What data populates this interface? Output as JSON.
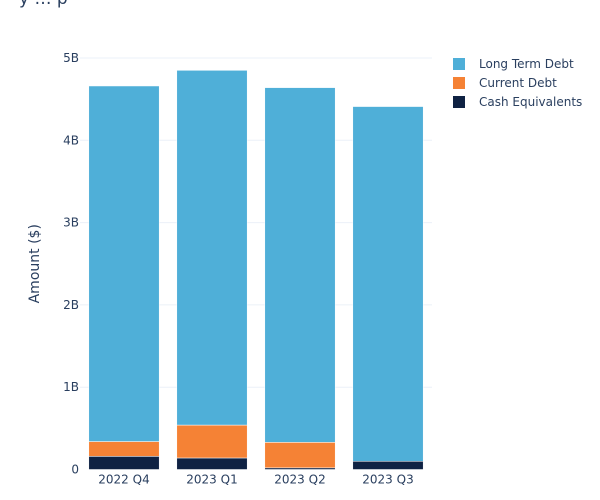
{
  "chart_data": {
    "type": "bar",
    "stacked": true,
    "categories": [
      "2022 Q4",
      "2023 Q1",
      "2023 Q2",
      "2023 Q3"
    ],
    "series": [
      {
        "name": "Cash Equivalents",
        "color": "#0f2243",
        "values": [
          0.16,
          0.14,
          0.02,
          0.1
        ]
      },
      {
        "name": "Current Debt",
        "color": "#f58235",
        "values": [
          0.18,
          0.4,
          0.31,
          0.0
        ]
      },
      {
        "name": "Long Term Debt",
        "color": "#4fafd8",
        "values": [
          4.32,
          4.31,
          4.31,
          4.31
        ]
      }
    ],
    "unit_suffix": "B",
    "ylabel": "Amount ($)",
    "xlabel": "",
    "ylim": [
      0,
      5
    ],
    "yticks": [
      0,
      1,
      2,
      3,
      4,
      5
    ],
    "ytick_labels": [
      "0",
      "1B",
      "2B",
      "3B",
      "4B",
      "5B"
    ],
    "grid": true,
    "legend_position": "top-right",
    "legend_order": [
      "Long Term Debt",
      "Current Debt",
      "Cash Equivalents"
    ],
    "title": "y … p"
  }
}
